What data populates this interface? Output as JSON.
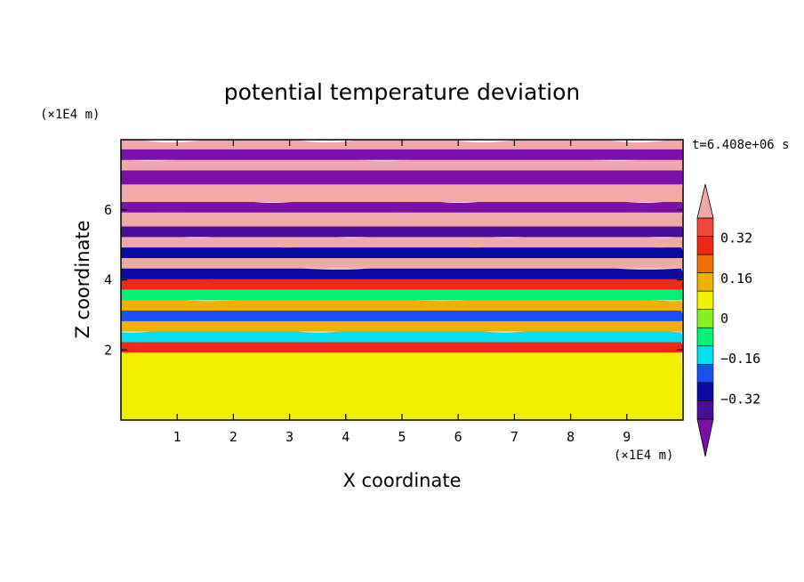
{
  "chart_data": {
    "type": "heatmap",
    "title": "potential temperature deviation",
    "xlabel": "X coordinate",
    "ylabel": "Z coordinate",
    "x_unit": "(×1E4 m)",
    "y_unit": "(×1E4 m)",
    "time_label": "t=6.408e+06 s",
    "xlim": [
      0,
      10
    ],
    "ylim": [
      0,
      8
    ],
    "x_ticks": [
      1,
      2,
      3,
      4,
      5,
      6,
      7,
      8,
      9
    ],
    "y_ticks": [
      2,
      4,
      6
    ],
    "colorbar": {
      "levels": [
        -0.48,
        -0.4,
        -0.32,
        -0.24,
        -0.16,
        -0.08,
        0,
        0.08,
        0.16,
        0.24,
        0.32,
        0.4,
        0.48
      ],
      "colors": [
        "#7a0faa",
        "#4a0f9a",
        "#0a0aa0",
        "#1a50f0",
        "#00e0f0",
        "#00f078",
        "#88f020",
        "#f0f000",
        "#f0b000",
        "#f07000",
        "#f02818",
        "#f04838",
        "#f0a8a8"
      ],
      "tick_labels": [
        "0.32",
        "0.16",
        "0",
        "−0.16",
        "−0.32"
      ],
      "tick_values": [
        0.32,
        0.16,
        0,
        -0.16,
        -0.32
      ],
      "extend": "both"
    },
    "bands": [
      {
        "z": [
          0.0,
          2.0
        ],
        "value": 0.0
      },
      {
        "z": [
          2.0,
          2.3
        ],
        "value": 0.3
      },
      {
        "z": [
          2.3,
          2.6
        ],
        "value": -0.2
      },
      {
        "z": [
          2.6,
          2.9
        ],
        "value": 0.15
      },
      {
        "z": [
          2.9,
          3.2
        ],
        "value": -0.3
      },
      {
        "z": [
          3.2,
          3.5
        ],
        "value": 0.1
      },
      {
        "z": [
          3.5,
          3.8
        ],
        "value": -0.1
      },
      {
        "z": [
          3.8,
          4.1
        ],
        "value": 0.3
      },
      {
        "z": [
          4.1,
          4.4
        ],
        "value": -0.35
      },
      {
        "z": [
          4.4,
          4.7
        ],
        "value": 0.4
      },
      {
        "z": [
          4.7,
          5.0
        ],
        "value": -0.4
      },
      {
        "z": [
          5.0,
          5.3
        ],
        "value": 0.45
      },
      {
        "z": [
          5.3,
          5.6
        ],
        "value": -0.45
      },
      {
        "z": [
          5.6,
          6.0
        ],
        "value": 0.5
      },
      {
        "z": [
          6.0,
          6.3
        ],
        "value": -0.5
      },
      {
        "z": [
          6.3,
          6.8
        ],
        "value": 0.5
      },
      {
        "z": [
          6.8,
          7.2
        ],
        "value": -0.5
      },
      {
        "z": [
          7.2,
          7.5
        ],
        "value": 0.5
      },
      {
        "z": [
          7.5,
          7.8
        ],
        "value": -0.5
      },
      {
        "z": [
          7.8,
          8.0
        ],
        "value": 0.5
      }
    ]
  }
}
